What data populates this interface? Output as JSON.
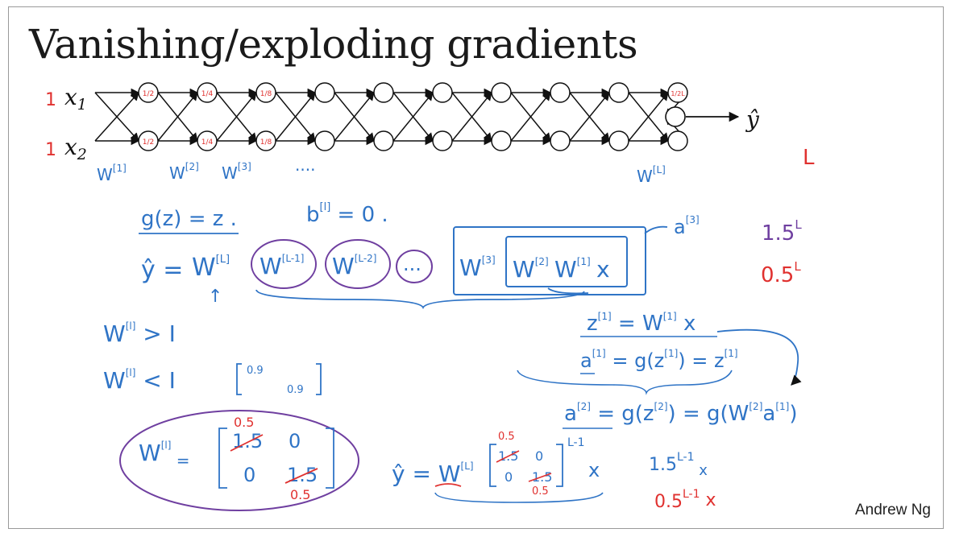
{
  "slide": {
    "title": "Vanishing/exploding gradients",
    "author": "Andrew Ng"
  },
  "colors": {
    "ink_blue": "#2f74c6",
    "ink_red": "#e0312f",
    "ink_purple": "#6f3fa0",
    "ink_black": "#111111"
  },
  "network": {
    "inputs": [
      "x1",
      "x2"
    ],
    "input_values": [
      "1",
      "1"
    ],
    "output": "ŷ",
    "hidden_layer_count": 10,
    "node_labels_row1": [
      "1/2",
      "1/4",
      "1/8",
      "",
      "",
      "",
      "",
      "",
      "",
      "1/2L"
    ],
    "node_labels_row2": [
      "1/2",
      "1/4",
      "1/8",
      "",
      "",
      "",
      "",
      "",
      "",
      ""
    ],
    "weight_labels": [
      "W[1]",
      "W[2]",
      "W[3]",
      "....",
      "W[L]"
    ],
    "depth_label": "L"
  },
  "notes": {
    "activation": "g(z) = z .",
    "bias": "b[l] = 0 .",
    "yhat_product": [
      "ŷ =",
      "W[L]",
      "W[L-1]",
      "W[L-2]",
      "...",
      "W[3]",
      "W[2]",
      "W[1]",
      "x"
    ],
    "a3_label": "a[3]",
    "exp_growth": "1.5^L",
    "exp_decay": "0.5^L",
    "z1": "z[1] = W[1] x",
    "a1": "a[1] = g(z[1]) = z[1]",
    "a2": "a[2] = g(z[2]) = g(W[2] a[1])",
    "w_greater": "W[l] > I",
    "w_less": "W[l] < I",
    "small_matrix": [
      "0.9",
      "0.9"
    ],
    "wl_matrix": {
      "lhs": "W[l] =",
      "cells": [
        "1.5",
        "0",
        "0",
        "1.5"
      ],
      "corrections": [
        "0.5",
        "0.5"
      ]
    },
    "yhat_matrix": {
      "lhs": "ŷ = W[L]",
      "cells": [
        "1.5",
        "0",
        "0",
        "1.5"
      ],
      "corrections": [
        "0.5",
        "0.5"
      ],
      "exponent": "L-1",
      "tail": "x"
    },
    "growth_x": "1.5^(L-1) x",
    "decay_x": "0.5^(L-1) x"
  }
}
